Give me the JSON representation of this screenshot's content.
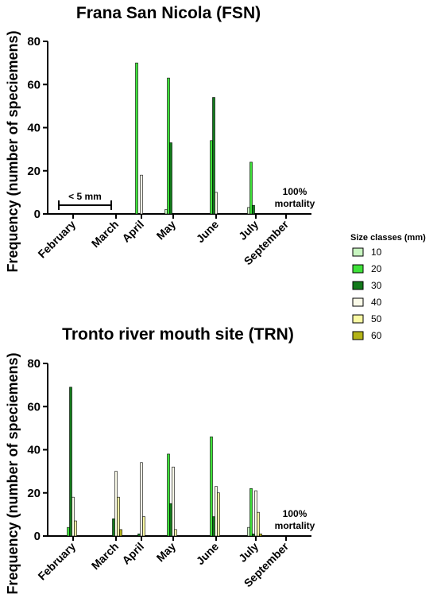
{
  "colors": {
    "10": "#c8f5c0",
    "20": "#3fe23a",
    "30": "#137a1b",
    "40": "#fafae8",
    "50": "#fafaa4",
    "60": "#b4b418"
  },
  "legend": {
    "title": "Size classes (mm)",
    "entries": [
      "10",
      "20",
      "30",
      "40",
      "50",
      "60"
    ],
    "placement": "right"
  },
  "chart_data": [
    {
      "type": "bar",
      "title": "Frana San Nicola (FSN)",
      "xlabel": "",
      "ylabel": "Frequency (number of speciemens)",
      "ylim": [
        0,
        80
      ],
      "yticks": [
        0,
        20,
        40,
        60,
        80
      ],
      "categories": [
        "February",
        "March",
        "April",
        "May",
        "June",
        "July",
        "September"
      ],
      "series": [
        {
          "name": "10",
          "values": [
            0,
            0,
            0,
            2,
            0,
            3,
            0
          ]
        },
        {
          "name": "20",
          "values": [
            0,
            0,
            70,
            63,
            34,
            24,
            0
          ]
        },
        {
          "name": "30",
          "values": [
            0,
            0,
            0,
            33,
            54,
            4,
            0
          ]
        },
        {
          "name": "40",
          "values": [
            0,
            0,
            18,
            0,
            10,
            0,
            0
          ]
        },
        {
          "name": "50",
          "values": [
            0,
            0,
            0,
            0,
            0,
            0,
            0
          ]
        },
        {
          "name": "60",
          "values": [
            0,
            0,
            0,
            0,
            0,
            0,
            0
          ]
        }
      ],
      "annotations": {
        "bracket": "< 5 mm",
        "mortality_line1": "100%",
        "mortality_line2": "mortality"
      }
    },
    {
      "type": "bar",
      "title": "Tronto river mouth site (TRN)",
      "xlabel": "",
      "ylabel": "Frequency (number of speciemens)",
      "ylim": [
        0,
        80
      ],
      "yticks": [
        0,
        20,
        40,
        60,
        80
      ],
      "categories": [
        "February",
        "March",
        "April",
        "May",
        "June",
        "July",
        "September"
      ],
      "series": [
        {
          "name": "10",
          "values": [
            0,
            0,
            0,
            0,
            0,
            4,
            0
          ]
        },
        {
          "name": "20",
          "values": [
            4,
            0,
            0,
            38,
            46,
            22,
            0
          ]
        },
        {
          "name": "30",
          "values": [
            69,
            8,
            1,
            15,
            9,
            1,
            0
          ]
        },
        {
          "name": "40",
          "values": [
            18,
            30,
            34,
            32,
            23,
            21,
            0
          ]
        },
        {
          "name": "50",
          "values": [
            7,
            18,
            9,
            3,
            20,
            11,
            0
          ]
        },
        {
          "name": "60",
          "values": [
            0,
            3,
            0,
            0,
            0,
            1,
            0
          ]
        }
      ],
      "annotations": {
        "mortality_line1": "100%",
        "mortality_line2": "mortality"
      }
    }
  ]
}
